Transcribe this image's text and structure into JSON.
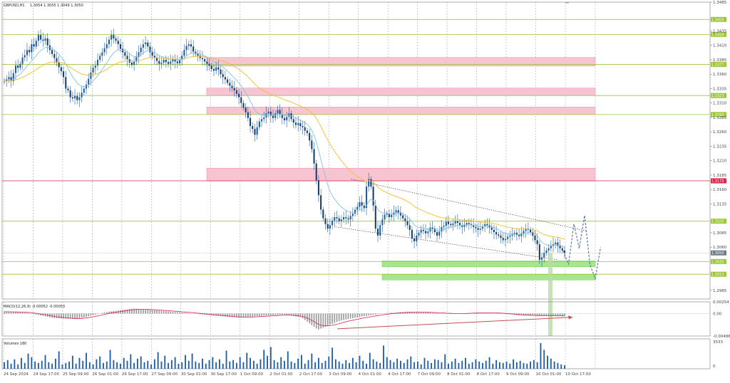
{
  "window": {
    "symbol_title": "GBPUSD,H1",
    "ohlc_text": "1.3054 1.3055 1.3049 1.3050",
    "macd_title": "MACD(12,26,9) -0.00052 -0.00053",
    "volumes_title": "Volumes 180"
  },
  "colors": {
    "bull_candle": "#1f5fa8",
    "ema_fast": "#7fc3e6",
    "ema_slow": "#f2bd2d",
    "level_line": "#9cc63b",
    "resistance_zone": "#f7c4d1",
    "support_zone": "#a7e68e",
    "red_level": "#d9264a",
    "macd_signal": "#d9264a",
    "macd_hist": "#9a9a9a",
    "projection": "#4a6fa5"
  },
  "chart_data": [
    {
      "type": "line",
      "title": "GBPUSD,H1",
      "subtitle": "1.3054 1.3055 1.3049 1.3050",
      "ylim": [
        1.297,
        1.3485
      ],
      "y_ticks": [
        "1.3485",
        "1.3435",
        "1.3410",
        "1.3385",
        "1.3360",
        "1.3335",
        "1.3310",
        "1.3285",
        "1.3260",
        "1.3235",
        "1.3210",
        "1.3185",
        "1.3160",
        "1.3135",
        "1.3085",
        "1.3060",
        "1.2985"
      ],
      "x_ticks": [
        "24 Sep 2024",
        "24 Sep 17:00",
        "25 Sep 09:00",
        "26 Sep 01:00",
        "26 Sep 17:00",
        "27 Sep 09:00",
        "30 Sep 01:00",
        "30 Sep 17:00",
        "1 Oct 09:00",
        "2 Oct 01:00",
        "2 Oct 17:00",
        "3 Oct 09:00",
        "4 Oct 01:00",
        "4 Oct 17:00",
        "7 Oct 09:00",
        "8 Oct 01:00",
        "8 Oct 17:00",
        "9 Oct 09:00",
        "10 Oct 01:00",
        "10 Oct 17:00"
      ],
      "current_price": "1.3050",
      "price_labels": [
        {
          "value": 1.3455,
          "text": "1.3455",
          "kind": "level"
        },
        {
          "value": 1.3429,
          "text": "1.3429",
          "kind": "level"
        },
        {
          "value": 1.3377,
          "text": "1.3377",
          "kind": "level"
        },
        {
          "value": 1.3323,
          "text": "1.3323",
          "kind": "level"
        },
        {
          "value": 1.329,
          "text": "1.3290",
          "kind": "level"
        },
        {
          "value": 1.3175,
          "text": "1.3175",
          "kind": "red"
        },
        {
          "value": 1.3105,
          "text": "1.3105",
          "kind": "level"
        },
        {
          "value": 1.3035,
          "text": "1.3035",
          "kind": "level"
        },
        {
          "value": 1.3013,
          "text": "1.3013",
          "kind": "level"
        }
      ],
      "resistance_zones": [
        [
          1.3374,
          1.3389
        ],
        [
          1.3323,
          1.3336
        ],
        [
          1.329,
          1.3303
        ],
        [
          1.3175,
          1.3197
        ]
      ],
      "support_zones": [
        [
          1.3026,
          1.3036
        ],
        [
          1.3003,
          1.3013
        ]
      ],
      "series": [
        {
          "kind": "candles",
          "closes": [
            1.3348,
            1.3351,
            1.3355,
            1.3348,
            1.3362,
            1.3375,
            1.3371,
            1.3378,
            1.3389,
            1.3393,
            1.3402,
            1.3398,
            1.3412,
            1.3408,
            1.3418,
            1.3428,
            1.342,
            1.3418,
            1.3422,
            1.341,
            1.3402,
            1.3395,
            1.3388,
            1.338,
            1.3372,
            1.3365,
            1.3355,
            1.3335,
            1.3332,
            1.332,
            1.3318,
            1.3322,
            1.3315,
            1.332,
            1.3328,
            1.3335,
            1.3342,
            1.3352,
            1.3363,
            1.3371,
            1.3375,
            1.3385,
            1.3392,
            1.3398,
            1.3405,
            1.3412,
            1.342,
            1.3428,
            1.3422,
            1.3418,
            1.3412,
            1.3404,
            1.3398,
            1.3392,
            1.3386,
            1.338,
            1.3376,
            1.3382,
            1.339,
            1.3398,
            1.3406,
            1.3412,
            1.3415,
            1.3408,
            1.3398,
            1.3392,
            1.3388,
            1.3383,
            1.3378,
            1.338,
            1.3385,
            1.3381,
            1.3378,
            1.3382,
            1.3386,
            1.3382,
            1.3379,
            1.3385,
            1.3392,
            1.3402,
            1.3409,
            1.3412,
            1.3408,
            1.3399,
            1.3395,
            1.3392,
            1.3388,
            1.3386,
            1.3382,
            1.3378,
            1.3375,
            1.3369,
            1.3366,
            1.3372,
            1.3368,
            1.336,
            1.3355,
            1.3351,
            1.3345,
            1.334,
            1.3336,
            1.3332,
            1.3326,
            1.332,
            1.331,
            1.3302,
            1.3294,
            1.3284,
            1.327,
            1.3265,
            1.3255,
            1.3268,
            1.3278,
            1.3282,
            1.3285,
            1.3292,
            1.3295,
            1.3288,
            1.3284,
            1.3292,
            1.3298,
            1.329,
            1.3284,
            1.328,
            1.3286,
            1.3292,
            1.3282,
            1.3276,
            1.3272,
            1.3275,
            1.327,
            1.3268,
            1.3262,
            1.3258,
            1.3245,
            1.323,
            1.3205,
            1.3176,
            1.315,
            1.3125,
            1.311,
            1.31,
            1.3092,
            1.3098,
            1.3106,
            1.3112,
            1.311,
            1.3105,
            1.3108,
            1.3112,
            1.311,
            1.3108,
            1.3114,
            1.3118,
            1.3125,
            1.313,
            1.3138,
            1.3132,
            1.3128,
            1.3165,
            1.3178,
            1.3165,
            1.3132,
            1.3092,
            1.308,
            1.3098,
            1.3108,
            1.3116,
            1.3118,
            1.3112,
            1.3116,
            1.312,
            1.3124,
            1.312,
            1.3115,
            1.311,
            1.3105,
            1.3098,
            1.309,
            1.3075,
            1.307,
            1.308,
            1.3085,
            1.309,
            1.3088,
            1.3084,
            1.3087,
            1.3094,
            1.3092,
            1.3086,
            1.308,
            1.3087,
            1.3095,
            1.3097,
            1.3104,
            1.31,
            1.3098,
            1.3101,
            1.3105,
            1.3102,
            1.3098,
            1.3095,
            1.3099,
            1.3102,
            1.31,
            1.3098,
            1.3095,
            1.3093,
            1.309,
            1.3092,
            1.3096,
            1.31,
            1.3098,
            1.3094,
            1.309,
            1.3086,
            1.3082,
            1.308,
            1.3076,
            1.3072,
            1.3074,
            1.3078,
            1.308,
            1.3082,
            1.3085,
            1.3081,
            1.3079,
            1.3084,
            1.3088,
            1.3092,
            1.309,
            1.3086,
            1.308,
            1.3072,
            1.3065,
            1.3038,
            1.3042,
            1.305,
            1.3054,
            1.3058,
            1.3062,
            1.3065,
            1.3068,
            1.3062,
            1.3058,
            1.3054,
            1.305
          ]
        },
        {
          "kind": "ema_fast"
        },
        {
          "kind": "ema_slow"
        }
      ],
      "channel_upper": [
        [
          1.3178,
          "4 Oct 01:00"
        ],
        [
          1.3088,
          "10 Oct 17:00"
        ]
      ],
      "channel_lower": [
        [
          1.3095,
          "3 Oct 09:00"
        ],
        [
          1.3038,
          "10 Oct 17:00"
        ]
      ],
      "projection_path": [
        1.3054,
        1.303,
        1.31,
        1.3058,
        1.3115,
        1.303,
        1.3005,
        1.306
      ]
    },
    {
      "type": "bar",
      "title": "MACD(12,26,9) -0.00052 -0.00053",
      "y_ticks": [
        "0.00254",
        "0.00",
        "-0.00486"
      ],
      "ylim": [
        -0.00486,
        0.00254
      ],
      "histogram_shape": [
        [
          0.0,
          0.0004
        ],
        [
          0.04,
          0.0002
        ],
        [
          0.09,
          -0.001
        ],
        [
          0.13,
          -0.0012
        ],
        [
          0.18,
          0.0003
        ],
        [
          0.23,
          0.0011
        ],
        [
          0.28,
          0.0006
        ],
        [
          0.33,
          0.0001
        ],
        [
          0.37,
          -0.0004
        ],
        [
          0.42,
          -0.0009
        ],
        [
          0.46,
          -0.0005
        ],
        [
          0.5,
          -0.0002
        ],
        [
          0.53,
          -0.0008
        ],
        [
          0.56,
          -0.0035
        ],
        [
          0.6,
          -0.0015
        ],
        [
          0.64,
          -0.0006
        ],
        [
          0.68,
          0.0001
        ],
        [
          0.72,
          0.0004
        ],
        [
          0.76,
          0.0002
        ],
        [
          0.8,
          -0.0001
        ],
        [
          0.84,
          0.0002
        ],
        [
          0.88,
          0.0001
        ],
        [
          0.92,
          -0.0004
        ],
        [
          0.95,
          -0.0005
        ],
        [
          1.0,
          -0.0005
        ]
      ],
      "divergence_arrow": [
        [
          -0.0033,
          "3 Oct 09:00"
        ],
        [
          -0.0008,
          "10 Oct 17:00"
        ]
      ]
    },
    {
      "type": "bar",
      "title": "Volumes 180",
      "y_ticks": [
        "3533",
        "0"
      ],
      "ylim": [
        0,
        3533
      ],
      "values": [
        900,
        1200,
        700,
        1300,
        600,
        1500,
        800,
        2100,
        1600,
        1000,
        800,
        1100,
        1900,
        900,
        700,
        1400,
        2400,
        600,
        800,
        1000,
        1800,
        700,
        1500,
        1100,
        2200,
        900,
        600,
        1300,
        1700,
        800,
        1000,
        2600,
        1200,
        900,
        700,
        1500,
        1100,
        2000,
        800,
        1400,
        1700,
        900,
        1100,
        600,
        1300,
        2300,
        1000,
        1800,
        800,
        1200,
        1600,
        700,
        900,
        1900,
        1100,
        2100,
        1000,
        800,
        1400,
        700,
        1200,
        1600,
        900,
        1300,
        700,
        2500,
        1000,
        1200,
        800,
        1600,
        900,
        2200,
        1500,
        1100,
        700,
        1300,
        2600,
        1800,
        3000,
        1200,
        900,
        1600,
        1100,
        2400,
        1000,
        800,
        1400,
        1900,
        700,
        1200,
        2100,
        900,
        1500,
        800,
        1100,
        1700,
        2900,
        1300,
        1000,
        700,
        1200,
        800,
        1500,
        900,
        1800,
        1100,
        700,
        2200,
        1300,
        1000,
        800,
        3200,
        1600,
        1200,
        900,
        1400,
        1100,
        800,
        1300,
        1700,
        900,
        1000,
        600,
        1500,
        1100,
        800,
        1300,
        1200,
        900,
        2000,
        700,
        1000,
        1400,
        800,
        1100,
        1500,
        700,
        900,
        1300,
        1000,
        800,
        1100,
        1600,
        700,
        1200,
        900,
        800,
        1000,
        700,
        1300,
        900,
        1100,
        800,
        700,
        1000,
        1200,
        900,
        3533,
        2600,
        1800,
        1400,
        1000,
        800,
        600,
        500
      ]
    }
  ]
}
